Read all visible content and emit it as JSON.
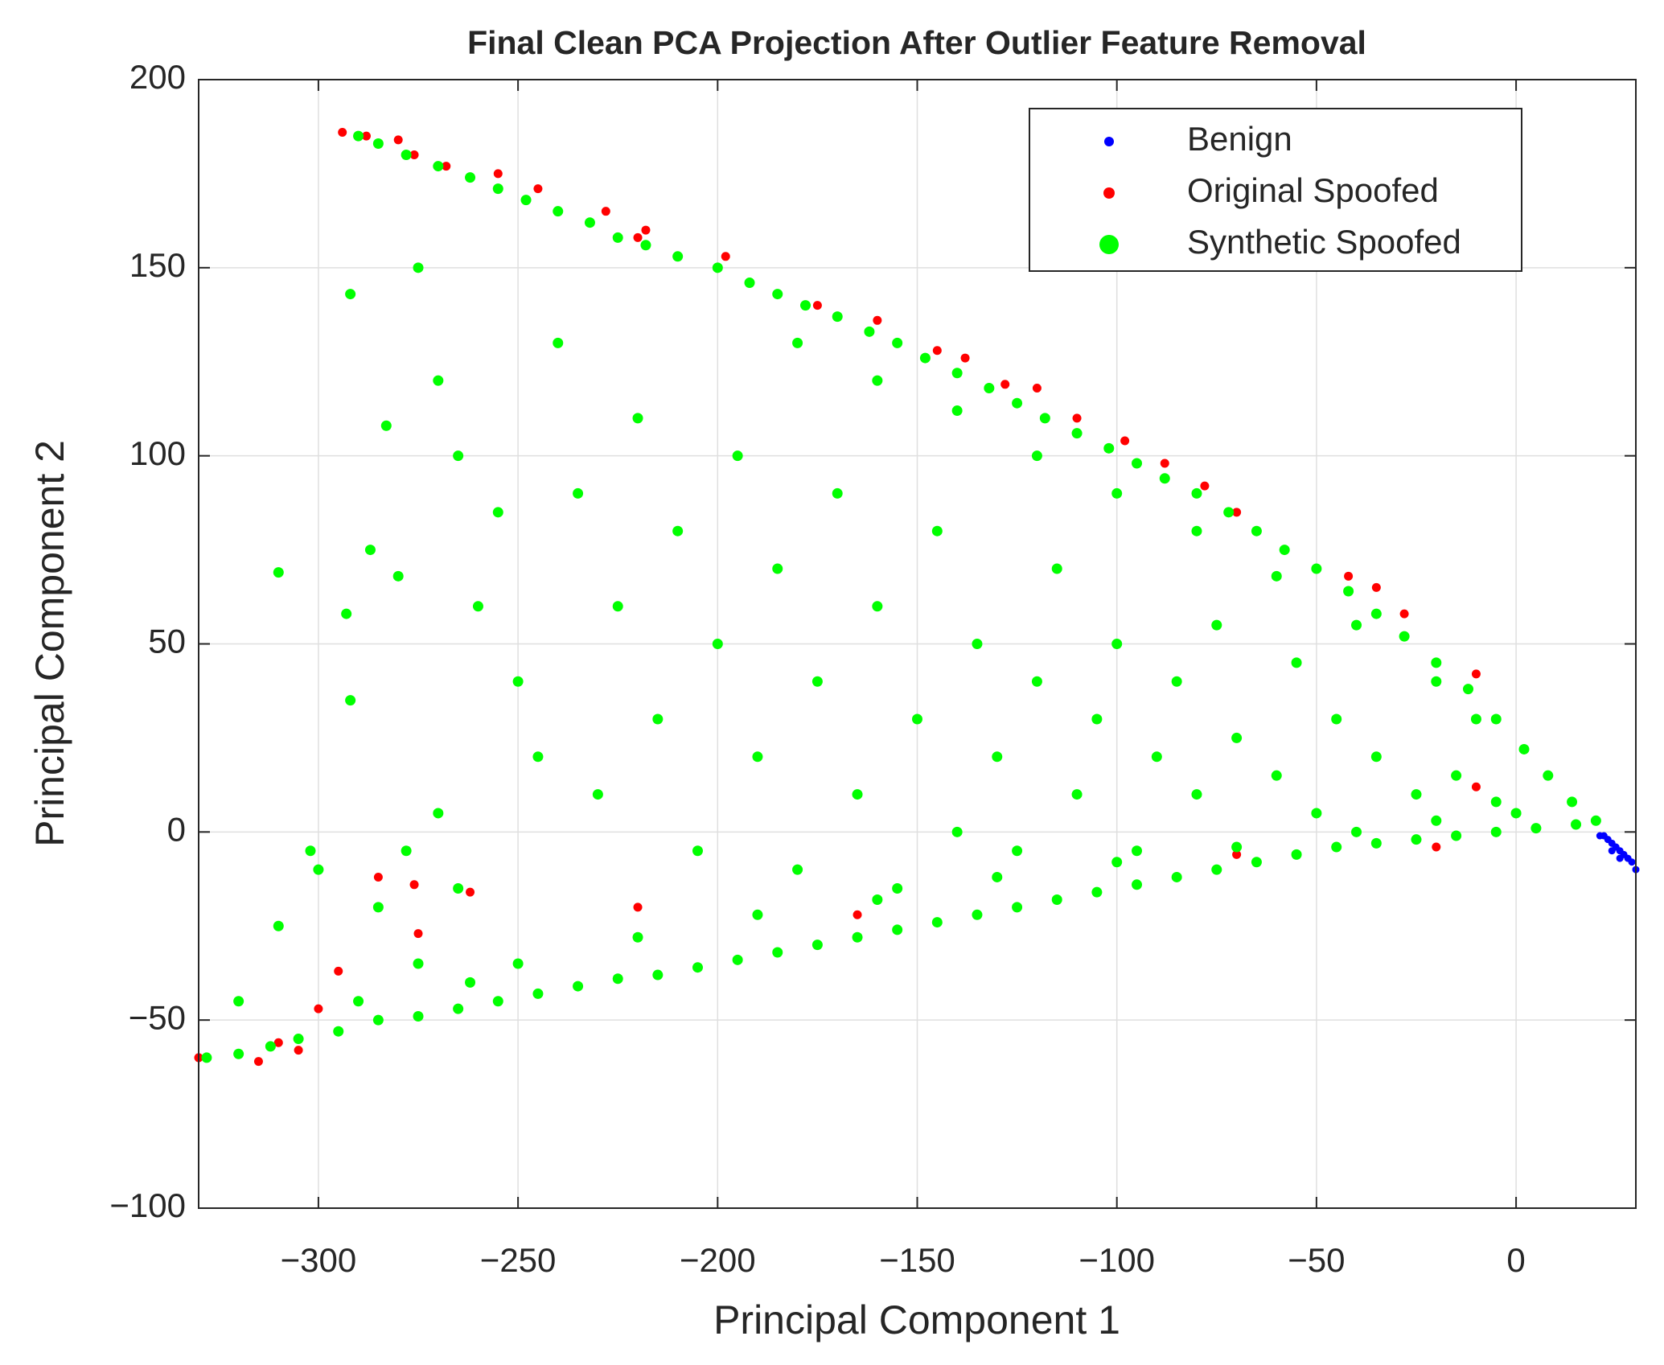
{
  "chart_data": {
    "type": "scatter",
    "title": "Final Clean PCA Projection After Outlier Feature Removal",
    "xlabel": "Principal Component 1",
    "ylabel": "Principal Component 2",
    "xlim": [
      -330,
      30
    ],
    "ylim": [
      -100,
      200
    ],
    "xticks": [
      {
        "value": -300,
        "label": "−300"
      },
      {
        "value": -250,
        "label": "−250"
      },
      {
        "value": -200,
        "label": "−200"
      },
      {
        "value": -150,
        "label": "−150"
      },
      {
        "value": -100,
        "label": "−100"
      },
      {
        "value": -50,
        "label": "−50"
      },
      0
    ],
    "yticks": [
      {
        "value": -100,
        "label": "−100"
      },
      {
        "value": -50,
        "label": "−50"
      },
      0,
      50,
      100,
      150,
      200
    ],
    "grid": true,
    "legend": "northeast",
    "series": [
      {
        "name": "Benign",
        "color": "#0000ff",
        "x": [
          22,
          23,
          24,
          25,
          26,
          27,
          28,
          29,
          30,
          24,
          26,
          21
        ],
        "y": [
          -1,
          -2,
          -3,
          -4,
          -5,
          -6,
          -7,
          -8,
          -10,
          -5,
          -7,
          -1
        ]
      },
      {
        "name": "Original Spoofed",
        "color": "#ff0000",
        "x": [
          -294,
          -288,
          -280,
          -276,
          -268,
          -255,
          -245,
          -228,
          -220,
          -218,
          -198,
          -175,
          -160,
          -145,
          -138,
          -128,
          -120,
          -110,
          -98,
          -88,
          -78,
          -70,
          -65,
          -42,
          -35,
          -28,
          -10,
          -285,
          -276,
          -275,
          -262,
          -295,
          -300,
          -315,
          -310,
          -305,
          -330,
          -220,
          -165,
          -70,
          -20,
          -10
        ],
        "y": [
          186,
          185,
          184,
          180,
          177,
          175,
          171,
          165,
          158,
          160,
          153,
          140,
          136,
          128,
          126,
          119,
          118,
          110,
          104,
          98,
          92,
          85,
          80,
          68,
          65,
          58,
          42,
          -12,
          -14,
          -27,
          -16,
          -37,
          -47,
          -61,
          -56,
          -58,
          -60,
          -20,
          -22,
          -6,
          -4,
          12
        ]
      },
      {
        "name": "Synthetic Spoofed",
        "color": "#00ff00",
        "x": [
          -290,
          -285,
          -278,
          -270,
          -262,
          -255,
          -248,
          -240,
          -232,
          -225,
          -218,
          -210,
          -200,
          -192,
          -185,
          -178,
          -170,
          -162,
          -155,
          -148,
          -140,
          -132,
          -125,
          -118,
          -110,
          -102,
          -95,
          -88,
          -80,
          -72,
          -65,
          -58,
          -50,
          -42,
          -35,
          -28,
          -20,
          -12,
          -5,
          2,
          8,
          14,
          20,
          -180,
          -160,
          -140,
          -120,
          -100,
          -80,
          -60,
          -40,
          -20,
          -10,
          -328,
          -320,
          -312,
          -305,
          -295,
          -285,
          -275,
          -265,
          -255,
          -245,
          -235,
          -225,
          -215,
          -205,
          -195,
          -185,
          -175,
          -165,
          -155,
          -145,
          -135,
          -125,
          -115,
          -105,
          -95,
          -85,
          -75,
          -65,
          -55,
          -45,
          -35,
          -25,
          -15,
          -5,
          5,
          15,
          -250,
          -220,
          -190,
          -160,
          -130,
          -100,
          -70,
          -40,
          -20,
          -310,
          -292,
          -293,
          -292,
          -287,
          -280,
          -283,
          -275,
          -270,
          -265,
          -260,
          -255,
          -250,
          -245,
          -240,
          -235,
          -230,
          -225,
          -220,
          -215,
          -210,
          -205,
          -200,
          -195,
          -190,
          -185,
          -180,
          -175,
          -170,
          -165,
          -160,
          -155,
          -150,
          -145,
          -140,
          -135,
          -130,
          -125,
          -120,
          -115,
          -110,
          -105,
          -100,
          -95,
          -90,
          -85,
          -80,
          -75,
          -70,
          -60,
          -55,
          -50,
          -45,
          -35,
          -25,
          -15,
          -5,
          0,
          -300,
          -302,
          -285,
          -275,
          -265,
          -262,
          -310,
          -320,
          -290,
          -270,
          -278
        ],
        "y": [
          185,
          183,
          180,
          177,
          174,
          171,
          168,
          165,
          162,
          158,
          156,
          153,
          150,
          146,
          143,
          140,
          137,
          133,
          130,
          126,
          122,
          118,
          114,
          110,
          106,
          102,
          98,
          94,
          90,
          85,
          80,
          75,
          70,
          64,
          58,
          52,
          45,
          38,
          30,
          22,
          15,
          8,
          3,
          130,
          120,
          112,
          100,
          90,
          80,
          68,
          55,
          40,
          30,
          -60,
          -59,
          -57,
          -55,
          -53,
          -50,
          -49,
          -47,
          -45,
          -43,
          -41,
          -39,
          -38,
          -36,
          -34,
          -32,
          -30,
          -28,
          -26,
          -24,
          -22,
          -20,
          -18,
          -16,
          -14,
          -12,
          -10,
          -8,
          -6,
          -4,
          -3,
          -2,
          -1,
          0,
          1,
          2,
          -35,
          -28,
          -22,
          -18,
          -12,
          -8,
          -4,
          0,
          3,
          69,
          35,
          58,
          143,
          75,
          68,
          108,
          150,
          120,
          100,
          60,
          85,
          40,
          20,
          130,
          90,
          10,
          60,
          110,
          30,
          80,
          -5,
          50,
          100,
          20,
          70,
          -10,
          40,
          90,
          10,
          60,
          -15,
          30,
          80,
          0,
          50,
          20,
          -5,
          40,
          70,
          10,
          30,
          50,
          -5,
          20,
          40,
          10,
          55,
          25,
          15,
          45,
          5,
          30,
          20,
          10,
          15,
          8,
          5,
          -10,
          -5,
          -20,
          -35,
          -15,
          -40,
          -25,
          -45,
          -45,
          5,
          -5
        ]
      }
    ]
  }
}
